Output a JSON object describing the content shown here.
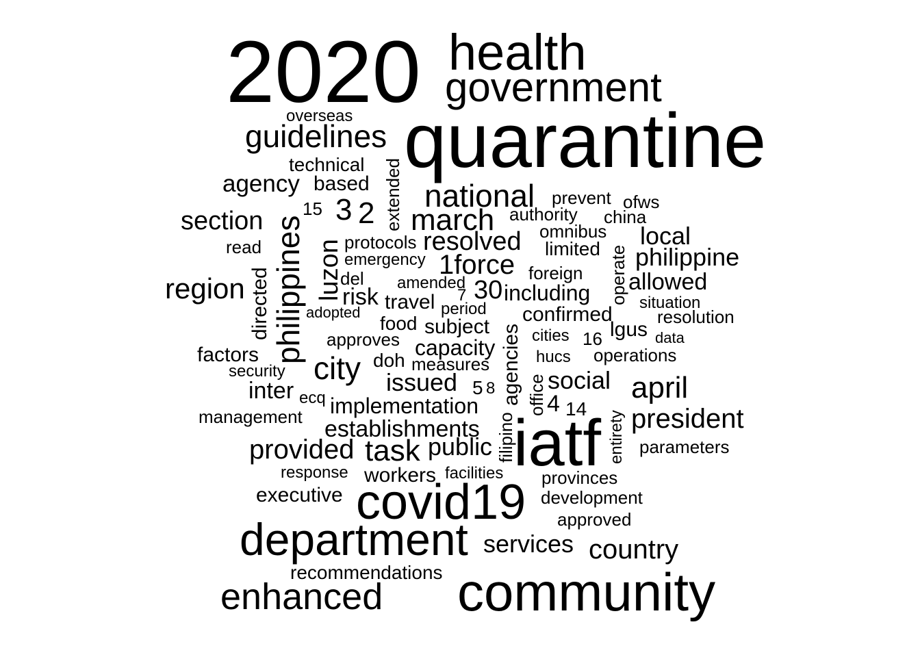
{
  "word_cloud": {
    "text_color": "#000000",
    "background_color": "#ffffff",
    "words": [
      "2020",
      "health",
      "government",
      "quarantine",
      "overseas",
      "guidelines",
      "technical",
      "extended",
      "agency",
      "based",
      "national",
      "prevent",
      "ofws",
      "15",
      "3",
      "2",
      "march",
      "authority",
      "china",
      "section",
      "philippines",
      "luzon",
      "protocols",
      "resolved",
      "omnibus",
      "limited",
      "operate",
      "local",
      "read",
      "directed",
      "emergency",
      "1force",
      "philippine",
      "del",
      "amended",
      "foreign",
      "region",
      "risk",
      "7",
      "30",
      "including",
      "allowed",
      "travel",
      "period",
      "situation",
      "adopted",
      "confirmed",
      "resolution",
      "food",
      "subject",
      "agencies",
      "approves",
      "lgus",
      "cities",
      "16",
      "data",
      "capacity",
      "factors",
      "operations",
      "doh",
      "measures",
      "hucs",
      "city",
      "security",
      "issued",
      "social",
      "april",
      "inter",
      "ecq",
      "5",
      "8",
      "office",
      "implementation",
      "4",
      "14",
      "management",
      "president",
      "filipino",
      "establishments",
      "entirety",
      "provided",
      "task",
      "public",
      "iatf",
      "parameters",
      "response",
      "facilities",
      "workers",
      "provinces",
      "executive",
      "development",
      "covid19",
      "approved",
      "department",
      "services",
      "country",
      "recommendations",
      "enhanced",
      "community"
    ]
  }
}
